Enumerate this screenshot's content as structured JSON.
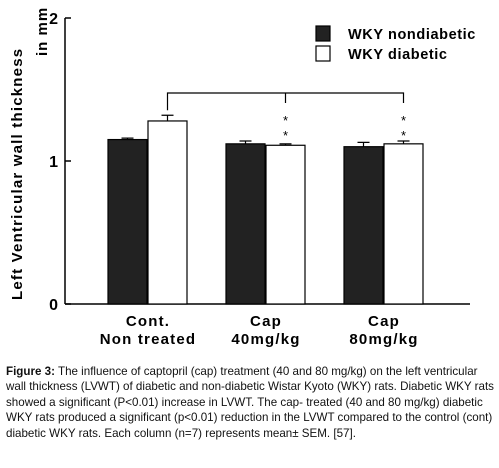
{
  "chart_data": {
    "type": "bar",
    "ylabel": [
      "Left Ventricular wall thickness",
      "in mm"
    ],
    "categories": [
      [
        "Cont.",
        "Non treated"
      ],
      [
        "Cap",
        "40mg/kg"
      ],
      [
        "Cap",
        "80mg/kg"
      ]
    ],
    "series": [
      {
        "name": "WKY nondiabetic",
        "color": "#222222",
        "values": [
          1.15,
          1.12,
          1.1
        ],
        "errors": [
          0.01,
          0.02,
          0.03
        ]
      },
      {
        "name": "WKY diabetic",
        "color": "#ffffff",
        "values": [
          1.28,
          1.11,
          1.12
        ],
        "errors": [
          0.04,
          0.01,
          0.02
        ]
      }
    ],
    "annotations": [
      {
        "text": "*",
        "series": 1,
        "category": 1
      },
      {
        "text": "*",
        "series": 1,
        "category": 1
      },
      {
        "text": "*",
        "series": 1,
        "category": 2
      },
      {
        "text": "*",
        "series": 1,
        "category": 2
      }
    ],
    "ylim": [
      0,
      2
    ],
    "yticks": [
      0,
      1,
      2
    ],
    "legend": "upper right"
  },
  "caption": {
    "label": "Figure 3:",
    "text": "The influence of captopril (cap) treatment (40 and 80 mg/kg) on the left ventricular wall thickness (LVWT) of diabetic and non-diabetic Wistar Kyoto (WKY) rats. Diabetic WKY rats showed a significant (P<0.01) increase in LVWT. The cap- treated (40 and 80 mg/kg) diabetic WKY rats produced a significant (p<0.01) reduction in the LVWT compared to the control (cont) diabetic WKY rats. Each column (n=7) represents mean± SEM. [57]."
  }
}
